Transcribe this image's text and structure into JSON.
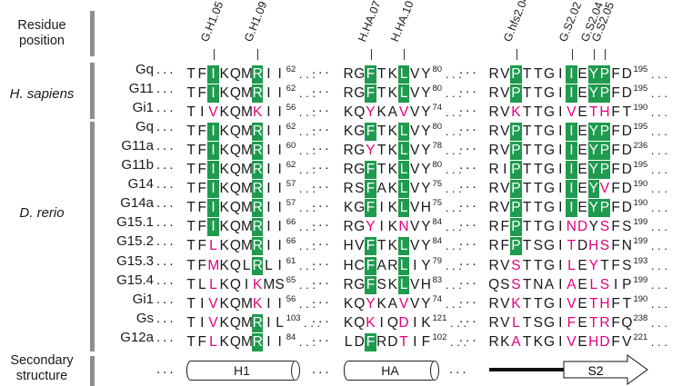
{
  "headers": {
    "residue_position": "Residue\nposition",
    "secondary_structure": "Secondary\nstructure"
  },
  "species": [
    {
      "name": "H. sapiens",
      "rows": [
        0,
        1,
        2
      ]
    },
    {
      "name": "D. rerio",
      "rows": [
        3,
        4,
        5,
        6,
        7,
        8,
        9,
        10,
        11,
        12,
        13,
        14
      ]
    }
  ],
  "position_labels": [
    {
      "text": "G.H1.05",
      "block": 0,
      "col": 2
    },
    {
      "text": "G.H1.09",
      "block": 0,
      "col": 6
    },
    {
      "text": "H.HA.07",
      "block": 1,
      "col": 2
    },
    {
      "text": "H.HA.10",
      "block": 1,
      "col": 5
    },
    {
      "text": "G.hfs2.04",
      "block": 2,
      "col": 2
    },
    {
      "text": "G.S2.02",
      "block": 2,
      "col": 7
    },
    {
      "text": "G.S2.04",
      "block": 2,
      "col": 9
    },
    {
      "text": "G.S2.05",
      "block": 2,
      "col": 10
    }
  ],
  "rows": [
    {
      "name": "Gq",
      "b": [
        [
          "TFIKQMRII",
          "..G...G..",
          62
        ],
        [
          "RGFTKLVY",
          "..G..G..",
          80
        ],
        [
          "RVPTTGIIEYPFD",
          "..G....G.GG..",
          195
        ]
      ]
    },
    {
      "name": "G11",
      "b": [
        [
          "TFIKQMRII",
          "..G...G..",
          62
        ],
        [
          "RGFTKLVY",
          "..G..G..",
          80
        ],
        [
          "RVPTTGIIEYPFD",
          "..G....G.GG..",
          195
        ]
      ]
    },
    {
      "name": "Gi1",
      "b": [
        [
          "TIVKQMKII",
          "..M...M..",
          56
        ],
        [
          "KQYKAVVY",
          "..M..M..",
          74
        ],
        [
          "RVKTTGIVETHFT",
          "..M....M.MM..",
          190
        ]
      ]
    },
    {
      "name": "Gq",
      "b": [
        [
          "TFIKQMRII",
          "..G...G..",
          62
        ],
        [
          "KGFTKLVY",
          "..G..G..",
          80
        ],
        [
          "RVPTTGIIEYPFD",
          "..G....G.GG..",
          195
        ]
      ]
    },
    {
      "name": "G11a",
      "b": [
        [
          "TFIKQMRII",
          "..G...G..",
          60
        ],
        [
          "RGYTKLVY",
          "..M..G..",
          78
        ],
        [
          "RVPTTGIIEYPFD",
          "..G....G.GG..",
          236
        ]
      ]
    },
    {
      "name": "G11b",
      "b": [
        [
          "TFIKQMRII",
          "..G...G..",
          62
        ],
        [
          "RGFTKLVY",
          "..G..G..",
          80
        ],
        [
          "RIPTTGIIEYPFD",
          "..G....G.GG..",
          195
        ]
      ]
    },
    {
      "name": "G14",
      "b": [
        [
          "TFIKQMRII",
          "..G...G..",
          57
        ],
        [
          "RSFAKLVY",
          "..G..G..",
          75
        ],
        [
          "RVPTTGIIEYVFD",
          "..G....G.GM..",
          190
        ]
      ]
    },
    {
      "name": "G14a",
      "b": [
        [
          "TFIKQMRII",
          "..G...G..",
          57
        ],
        [
          "KGFIKLVH",
          "..G..G..",
          75
        ],
        [
          "RVPTTGIIEYPFD",
          "..G....G.GG..",
          190
        ]
      ]
    },
    {
      "name": "G15.1",
      "b": [
        [
          "TFIKQMRII",
          "..G...G..",
          66
        ],
        [
          "RGYIKNVY",
          "..M..M..",
          84
        ],
        [
          "RFPTTGINDYSFS",
          "..G....MM.M..",
          199
        ]
      ]
    },
    {
      "name": "G15.2",
      "b": [
        [
          "TFLKQMRII",
          "..M...G..",
          66
        ],
        [
          "HVFTKLVY",
          "..G..G..",
          84
        ],
        [
          "RFPTSGITDHSFN",
          "..G....M.MM..",
          199
        ]
      ]
    },
    {
      "name": "G15.3",
      "b": [
        [
          "TFMKQLRLI",
          "..M...G..",
          61
        ],
        [
          "HCFARLIY",
          "..G..G..",
          79
        ],
        [
          "RVSTTGILEYTFS",
          "..M....M.M...",
          193
        ]
      ]
    },
    {
      "name": "G15.4",
      "b": [
        [
          "TLLKQIKMS",
          "..M...M..",
          65
        ],
        [
          "RGFSKLVH",
          "..G..G..",
          83
        ],
        [
          "QSSTNAIAELSIP",
          "..M....M.MM..",
          199
        ]
      ]
    },
    {
      "name": "Gi1",
      "b": [
        [
          "TIVKQMKII",
          "..M...M..",
          56
        ],
        [
          "KQYKAVVY",
          "..M..M..",
          74
        ],
        [
          "RVKTTGIVETHFT",
          "..M....M.MM..",
          190
        ]
      ]
    },
    {
      "name": "Gs",
      "b": [
        [
          "TIVKQMRIL",
          "..M...G..",
          103
        ],
        [
          "KQKIQDIK",
          "..M..M..",
          121
        ],
        [
          "RVLTSGIFETRFQ",
          "..M....M.MM..",
          238
        ]
      ]
    },
    {
      "name": "G12a",
      "b": [
        [
          "TFLKQMRII",
          "..M...G..",
          84
        ],
        [
          "LDFRDTIF",
          "..G..M..",
          102
        ],
        [
          "RKATKGIVEHDFV",
          "..M....M.MM..",
          221
        ]
      ]
    }
  ],
  "secondary": [
    {
      "label": "H1",
      "type": "helix"
    },
    {
      "label": "HA",
      "type": "helix"
    },
    {
      "label": "S2",
      "type": "strand"
    }
  ],
  "colors": {
    "green": "#1f9a4e",
    "magenta": "#e3007e",
    "bar": "#8e8e8e"
  }
}
